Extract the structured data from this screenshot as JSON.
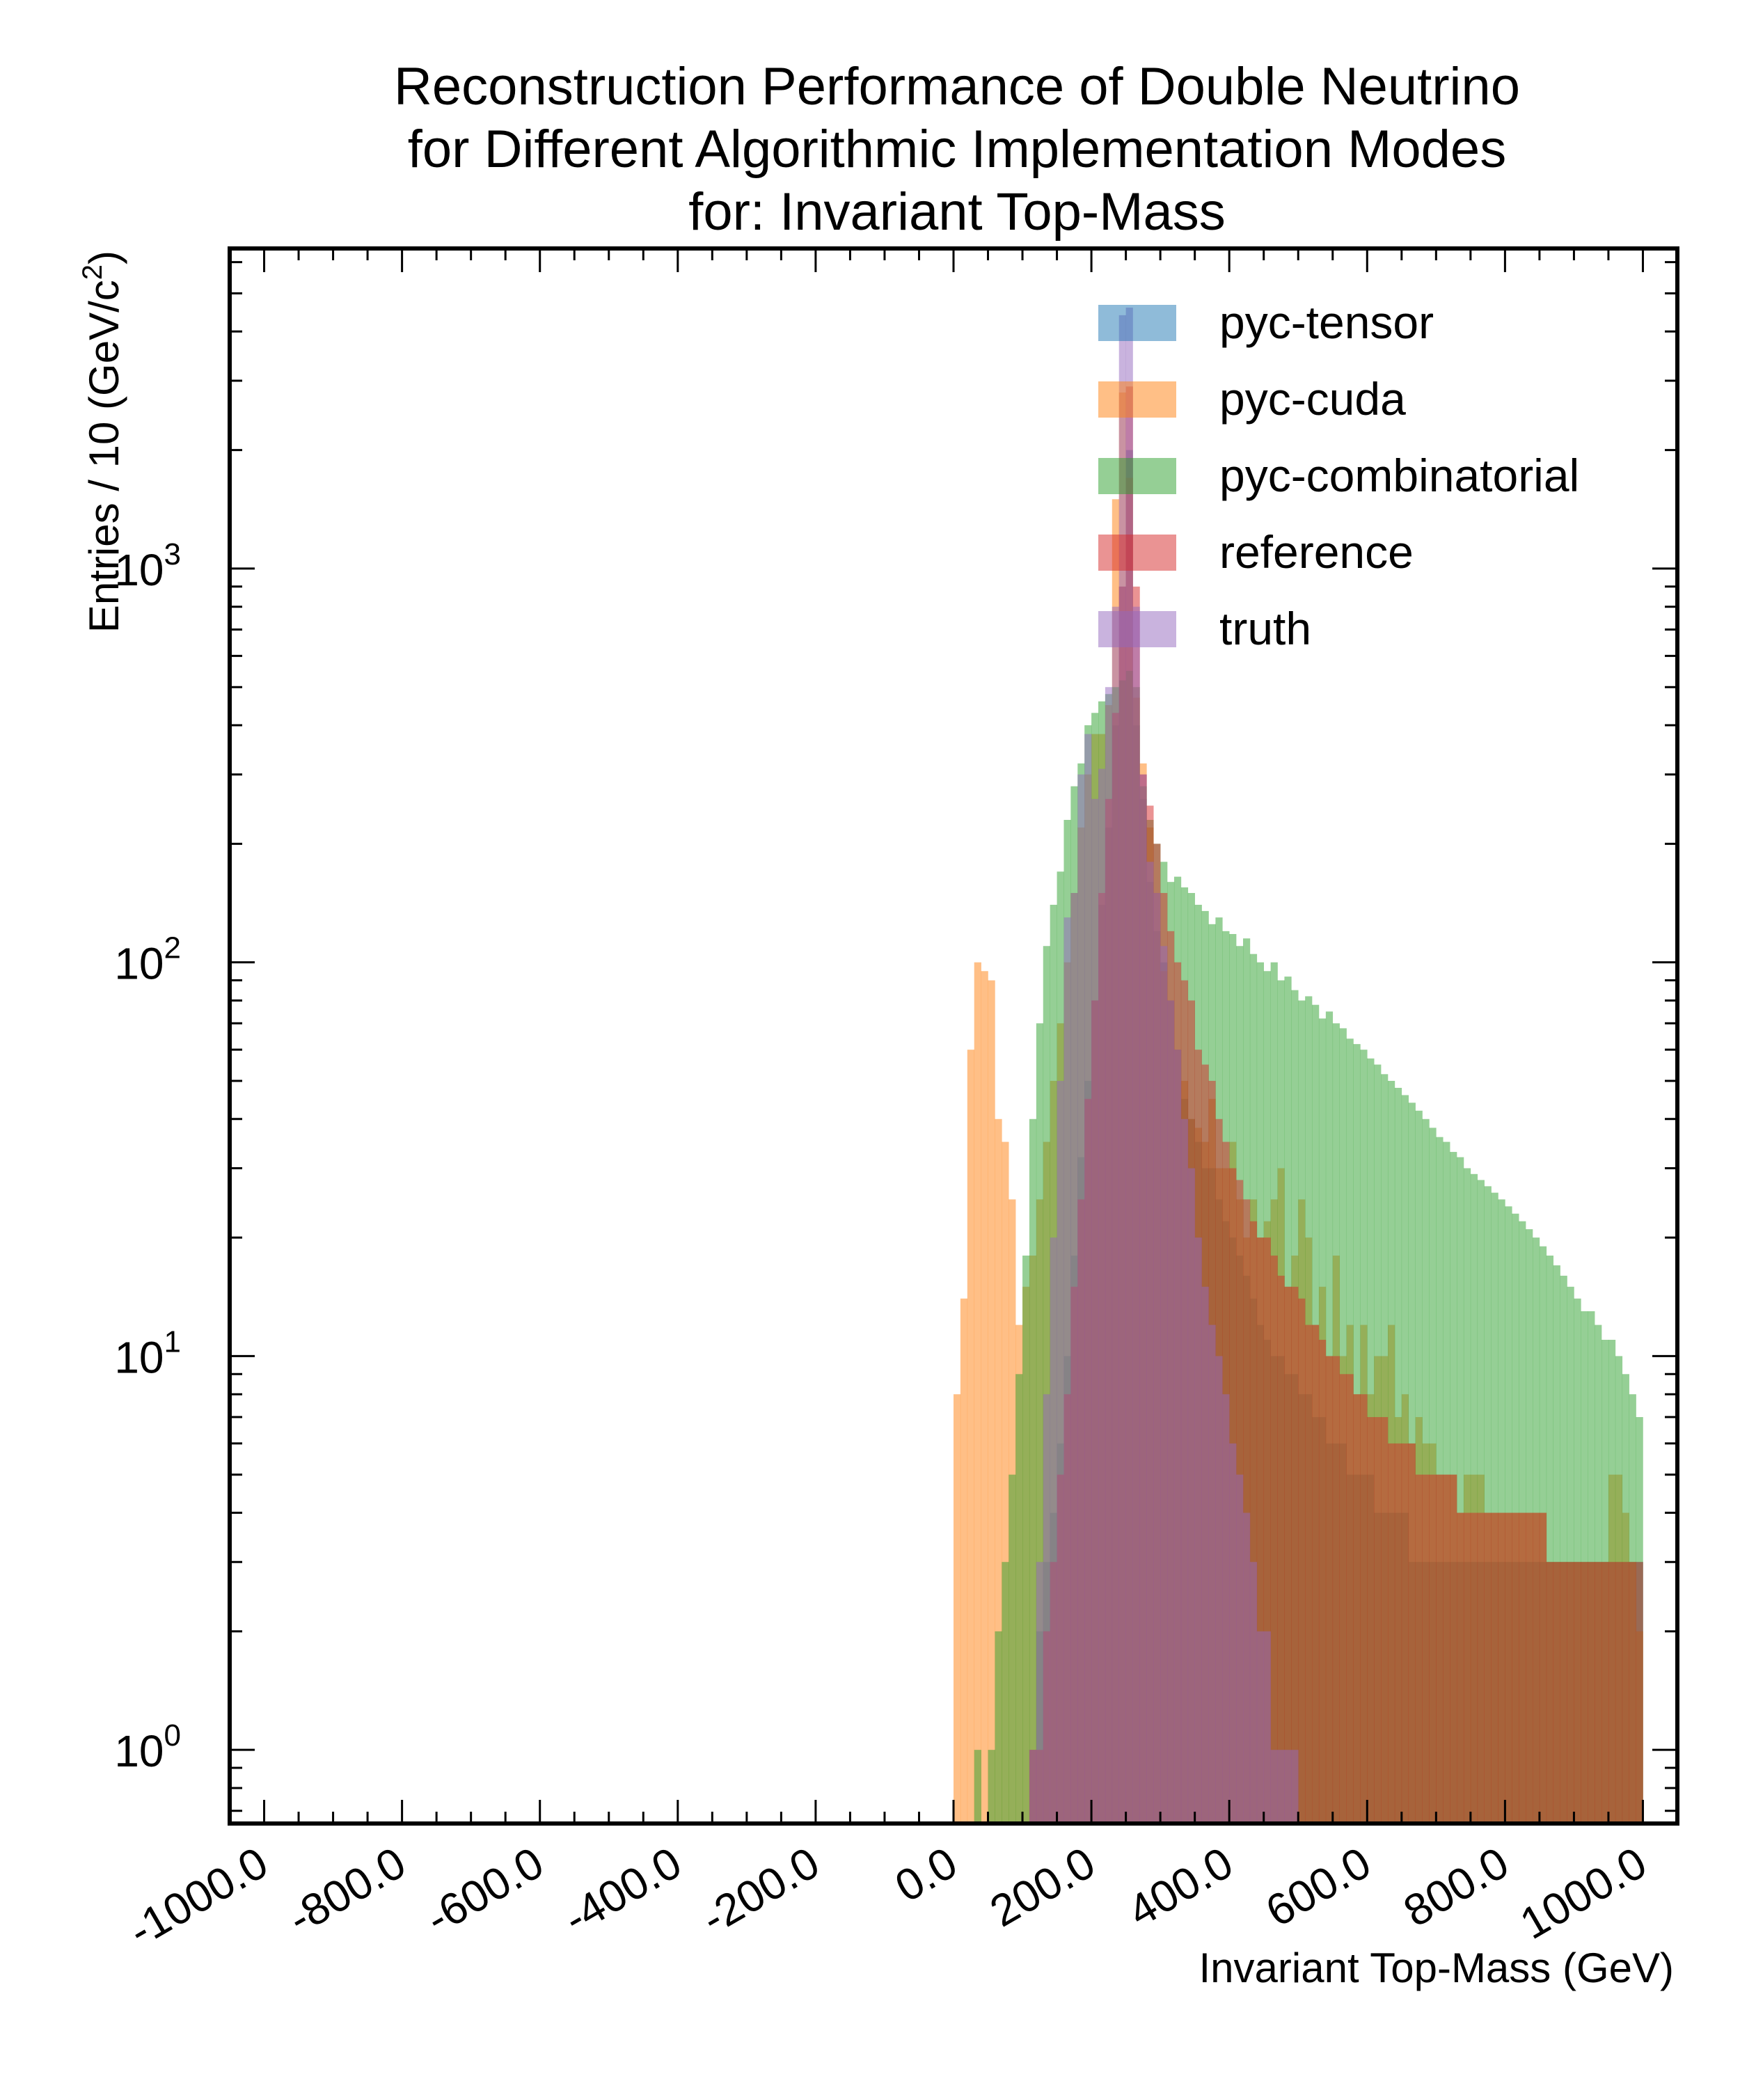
{
  "chart_data": {
    "type": "histogram",
    "title_lines": [
      "Reconstruction Performance of Double Neutrino",
      "for Different Algorithmic Implementation Modes",
      "for: Invariant Top-Mass"
    ],
    "xlabel": "Invariant Top-Mass (GeV)",
    "ylabel": "Entries  / 10 (GeV/c",
    "ylabel_sup": "2",
    "ylabel_close": ")",
    "xlim": [
      -1050,
      1050
    ],
    "ylim": [
      0.65,
      6500
    ],
    "yscale": "log",
    "x_ticks": [
      -1000,
      -800,
      -600,
      -400,
      -200,
      0,
      200,
      400,
      600,
      800,
      1000
    ],
    "x_tick_labels": [
      "-1000.0",
      "-800.0",
      "-600.0",
      "-400.0",
      "-200.0",
      "0.0",
      "200.0",
      "400.0",
      "600.0",
      "800.0",
      "1000.0"
    ],
    "y_ticks": [
      {
        "value": 1,
        "base": "10",
        "exp": "0"
      },
      {
        "value": 10,
        "base": "10",
        "exp": "1"
      },
      {
        "value": 100,
        "base": "10",
        "exp": "2"
      },
      {
        "value": 1000,
        "base": "10",
        "exp": "3"
      }
    ],
    "bin_width": 10,
    "legend_position": "top-right",
    "grid": false,
    "series": [
      {
        "name": "pyc-tensor",
        "color": "#1f77b4",
        "x_start": 0,
        "values": [
          0,
          0,
          0,
          0,
          0,
          0,
          0,
          0,
          0,
          0,
          0,
          1,
          2,
          3,
          4,
          6,
          10,
          18,
          32,
          50,
          80,
          140,
          220,
          400,
          900,
          2000,
          400,
          260,
          160,
          120,
          100,
          80,
          60,
          45,
          40,
          35,
          30,
          30,
          25,
          22,
          20,
          18,
          16,
          14,
          12,
          11,
          10,
          10,
          9,
          9,
          8,
          8,
          7,
          7,
          6,
          6,
          6,
          5,
          5,
          5,
          5,
          4,
          4,
          4,
          4,
          4,
          3,
          3,
          3,
          3,
          3,
          3,
          3,
          3,
          3,
          3,
          3,
          3,
          3,
          3,
          3,
          3,
          3,
          3,
          3,
          3,
          3,
          3,
          3,
          3,
          3,
          3,
          3,
          3,
          3,
          3,
          3,
          3,
          3,
          3
        ]
      },
      {
        "name": "pyc-cuda",
        "color": "#ff7f0e",
        "x_start": 0,
        "values": [
          8,
          14,
          60,
          100,
          95,
          90,
          40,
          35,
          25,
          12,
          15,
          18,
          25,
          35,
          50,
          70,
          100,
          150,
          220,
          300,
          380,
          380,
          450,
          1500,
          2800,
          1700,
          470,
          320,
          220,
          150,
          95,
          80,
          60,
          50,
          40,
          38,
          35,
          45,
          30,
          30,
          35,
          25,
          20,
          25,
          20,
          22,
          25,
          30,
          15,
          18,
          25,
          20,
          12,
          15,
          10,
          18,
          10,
          12,
          8,
          12,
          8,
          10,
          10,
          12,
          7,
          8,
          6,
          7,
          6,
          6,
          5,
          5,
          5,
          4,
          5,
          5,
          5,
          4,
          4,
          4,
          4,
          4,
          4,
          4,
          4,
          4,
          3,
          3,
          3,
          3,
          3,
          3,
          3,
          3,
          3,
          5,
          5,
          4,
          3,
          2
        ]
      },
      {
        "name": "pyc-combinatorial",
        "color": "#2ca02c",
        "x_start": 0,
        "values": [
          0,
          0,
          0,
          1,
          0,
          1,
          2,
          3,
          5,
          9,
          18,
          40,
          70,
          110,
          140,
          170,
          230,
          280,
          320,
          400,
          430,
          460,
          480,
          500,
          520,
          550,
          500,
          280,
          230,
          200,
          180,
          160,
          165,
          155,
          150,
          140,
          135,
          125,
          130,
          120,
          118,
          110,
          115,
          105,
          100,
          95,
          100,
          90,
          92,
          85,
          80,
          82,
          78,
          72,
          75,
          70,
          68,
          64,
          62,
          60,
          57,
          55,
          52,
          50,
          48,
          46,
          44,
          42,
          40,
          38,
          36,
          35,
          33,
          32,
          30,
          29,
          28,
          27,
          26,
          25,
          24,
          23,
          22,
          21,
          20,
          19,
          18,
          17,
          16,
          15,
          14,
          13,
          13,
          12,
          11,
          11,
          10,
          9,
          8,
          7
        ]
      },
      {
        "name": "reference",
        "color": "#d62728",
        "x_start": 0,
        "values": [
          0,
          0,
          0,
          0,
          0,
          0,
          0,
          0,
          0,
          0,
          0,
          1,
          1,
          2,
          3,
          5,
          8,
          15,
          25,
          45,
          80,
          150,
          260,
          430,
          900,
          2900,
          900,
          300,
          250,
          200,
          150,
          120,
          100,
          90,
          80,
          60,
          55,
          50,
          40,
          35,
          30,
          28,
          25,
          22,
          20,
          20,
          18,
          16,
          15,
          15,
          14,
          12,
          12,
          11,
          10,
          10,
          9,
          9,
          8,
          8,
          7,
          7,
          7,
          6,
          6,
          6,
          6,
          5,
          5,
          5,
          5,
          5,
          5,
          4,
          4,
          4,
          4,
          4,
          4,
          4,
          4,
          4,
          4,
          4,
          4,
          4,
          3,
          3,
          3,
          3,
          3,
          3,
          3,
          3,
          3,
          3,
          3,
          3,
          3,
          3
        ]
      },
      {
        "name": "truth",
        "color": "#9467bd",
        "x_start": 0,
        "values": [
          0,
          0,
          0,
          0,
          0,
          0,
          0,
          0,
          0,
          0,
          0,
          1,
          3,
          8,
          20,
          50,
          130,
          150,
          300,
          380,
          260,
          310,
          500,
          800,
          4400,
          4600,
          800,
          300,
          180,
          150,
          110,
          80,
          60,
          40,
          30,
          20,
          15,
          12,
          10,
          8,
          6,
          5,
          4,
          3,
          2,
          2,
          1,
          1,
          1,
          1,
          0,
          0,
          0,
          0,
          0,
          0,
          0,
          0,
          0,
          0,
          0,
          0,
          0,
          0,
          0,
          0,
          0,
          0,
          0,
          0,
          0,
          0,
          0,
          0,
          0,
          0,
          0,
          0,
          0,
          0,
          0,
          0,
          0,
          0,
          0,
          0,
          0,
          0,
          0,
          0,
          0,
          0,
          0,
          0,
          0,
          0,
          0,
          0,
          0,
          0
        ]
      }
    ]
  }
}
